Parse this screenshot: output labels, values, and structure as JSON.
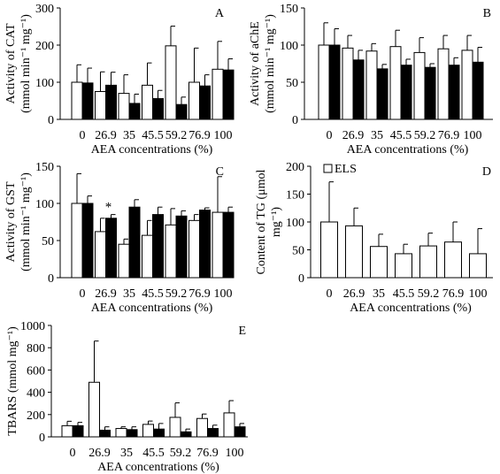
{
  "chart_data": [
    {
      "id": "A",
      "type": "bar",
      "panel_letter": "A",
      "ylabel_line1": "Activity of CAT",
      "ylabel_line2": "(mmol min⁻¹ mg⁻¹)",
      "xlabel": "AEA concentrations (%)",
      "categories": [
        "0",
        "26.9",
        "35",
        "45.5",
        "59.2",
        "76.9",
        "100"
      ],
      "ylim": [
        0,
        300
      ],
      "yticks": [
        "0",
        "100",
        "200",
        "300"
      ],
      "series": [
        {
          "fill": "#ffffff",
          "values": [
            100,
            75,
            70,
            92,
            198,
            100,
            135
          ],
          "errors": [
            47,
            53,
            50,
            60,
            53,
            92,
            75
          ]
        },
        {
          "fill": "#000000",
          "values": [
            98,
            92,
            43,
            56,
            40,
            90,
            133
          ],
          "errors": [
            40,
            35,
            25,
            22,
            20,
            30,
            30
          ]
        }
      ],
      "annotations": []
    },
    {
      "id": "B",
      "type": "bar",
      "panel_letter": "B",
      "ylabel_line1": "Activity of aChE",
      "ylabel_line2": "(mmol min⁻¹ mg⁻¹)",
      "xlabel": "AEA concentrations (%)",
      "categories": [
        "0",
        "26.9",
        "35",
        "45.5",
        "59.2",
        "76.9",
        "100"
      ],
      "ylim": [
        0,
        150
      ],
      "yticks": [
        "0",
        "50",
        "100",
        "150"
      ],
      "series": [
        {
          "fill": "#ffffff",
          "values": [
            100,
            96,
            92,
            98,
            90,
            95,
            93
          ],
          "errors": [
            30,
            17,
            10,
            22,
            20,
            18,
            20
          ]
        },
        {
          "fill": "#000000",
          "values": [
            100,
            80,
            68,
            73,
            70,
            73,
            77
          ],
          "errors": [
            22,
            13,
            6,
            8,
            5,
            10,
            20
          ]
        }
      ],
      "annotations": []
    },
    {
      "id": "C",
      "type": "bar",
      "panel_letter": "C",
      "ylabel_line1": "Activity of GST",
      "ylabel_line2": "(mmol min⁻¹ mg⁻¹)",
      "xlabel": "AEA concentrations (%)",
      "categories": [
        "0",
        "26.9",
        "35",
        "45.5",
        "59.2",
        "76.9",
        "100"
      ],
      "ylim": [
        0,
        150
      ],
      "yticks": [
        "0",
        "50",
        "100",
        "150"
      ],
      "series": [
        {
          "fill": "#ffffff",
          "values": [
            100,
            62,
            45,
            57,
            71,
            77,
            88
          ],
          "errors": [
            40,
            18,
            7,
            20,
            22,
            8,
            48
          ]
        },
        {
          "fill": "#000000",
          "values": [
            100,
            80,
            95,
            85,
            83,
            91,
            88
          ],
          "errors": [
            10,
            5,
            10,
            10,
            7,
            3,
            7
          ]
        }
      ],
      "annotations": [
        {
          "text": "*",
          "category_index": 1
        }
      ]
    },
    {
      "id": "D",
      "type": "bar",
      "panel_letter": "D",
      "ylabel_line1": "Content of TG (μmol",
      "ylabel_line2": "mg⁻¹)",
      "xlabel": "AEA concentrations (%)",
      "categories": [
        "0",
        "26.9",
        "35",
        "45.5",
        "59.2",
        "76.9",
        "100"
      ],
      "ylim": [
        0,
        200
      ],
      "yticks": [
        "0",
        "50",
        "100",
        "150",
        "200"
      ],
      "legend": {
        "label": "ELS",
        "placement": "top-left"
      },
      "series": [
        {
          "name": "ELS",
          "fill": "#ffffff",
          "values": [
            100,
            93,
            56,
            43,
            57,
            64,
            43
          ],
          "errors": [
            72,
            32,
            22,
            17,
            23,
            36,
            45
          ]
        }
      ],
      "annotations": []
    },
    {
      "id": "E",
      "type": "bar",
      "panel_letter": "E",
      "ylabel_line1": "TBARS (mmol mg⁻¹)",
      "ylabel_line2": "",
      "xlabel": "AEA concentrations (%)",
      "categories": [
        "0",
        "26.9",
        "35",
        "45.5",
        "59.2",
        "76.9",
        "100"
      ],
      "ylim": [
        0,
        1000
      ],
      "yticks": [
        "0",
        "200",
        "400",
        "600",
        "800",
        "1000"
      ],
      "series": [
        {
          "fill": "#ffffff",
          "values": [
            100,
            490,
            75,
            112,
            175,
            165,
            215
          ],
          "errors": [
            40,
            370,
            15,
            30,
            130,
            40,
            110
          ]
        },
        {
          "fill": "#000000",
          "values": [
            100,
            60,
            65,
            70,
            45,
            75,
            90
          ],
          "errors": [
            30,
            30,
            25,
            50,
            25,
            30,
            30
          ]
        }
      ],
      "annotations": []
    }
  ]
}
